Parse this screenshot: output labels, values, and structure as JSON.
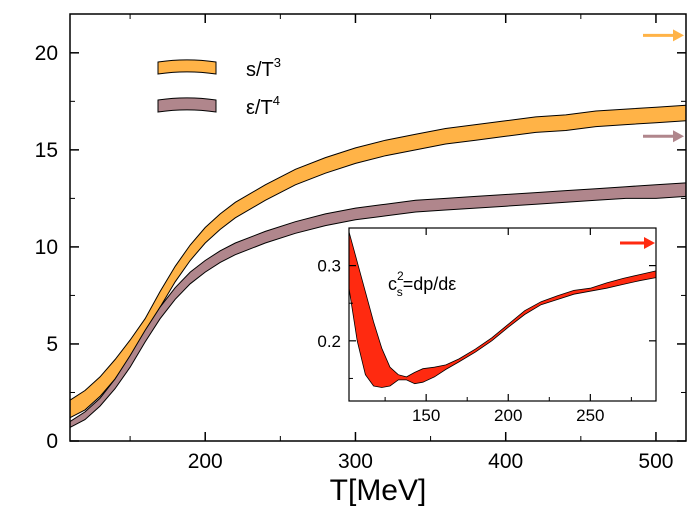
{
  "chart_data": [
    {
      "type": "area",
      "xlabel": "T[MeV]",
      "ylabel": "",
      "xlim": [
        110,
        520
      ],
      "ylim": [
        0,
        22
      ],
      "xticks": [
        200,
        300,
        400,
        500
      ],
      "yticks": [
        0,
        5,
        10,
        15,
        20
      ],
      "grid": false,
      "legend_position": "top-left",
      "series": [
        {
          "name": "s/T^3",
          "legend_main": "s/T",
          "legend_sup": "3",
          "color": "#ffb347",
          "x": [
            110,
            120,
            130,
            140,
            150,
            160,
            170,
            180,
            190,
            200,
            210,
            220,
            240,
            260,
            280,
            300,
            320,
            340,
            360,
            380,
            400,
            420,
            440,
            460,
            480,
            500,
            520
          ],
          "lower": [
            1.2,
            1.6,
            2.3,
            3.2,
            4.3,
            5.5,
            6.9,
            8.2,
            9.3,
            10.2,
            10.9,
            11.5,
            12.4,
            13.2,
            13.8,
            14.3,
            14.7,
            15.0,
            15.3,
            15.5,
            15.7,
            15.9,
            16.0,
            16.2,
            16.3,
            16.4,
            16.5
          ],
          "upper": [
            2.1,
            2.6,
            3.3,
            4.2,
            5.2,
            6.3,
            7.7,
            9.0,
            10.1,
            11.0,
            11.7,
            12.3,
            13.2,
            14.0,
            14.6,
            15.1,
            15.5,
            15.8,
            16.1,
            16.3,
            16.5,
            16.7,
            16.8,
            17.0,
            17.1,
            17.2,
            17.3
          ]
        },
        {
          "name": "ε/T^4",
          "legend_main": "ε/T",
          "legend_sup": "4",
          "color": "#b0868c",
          "x": [
            110,
            120,
            130,
            140,
            150,
            160,
            170,
            180,
            190,
            200,
            210,
            220,
            240,
            260,
            280,
            300,
            320,
            340,
            360,
            380,
            400,
            420,
            440,
            460,
            480,
            500,
            520
          ],
          "lower": [
            0.7,
            1.1,
            1.8,
            2.7,
            3.8,
            5.1,
            6.3,
            7.3,
            8.1,
            8.7,
            9.2,
            9.6,
            10.2,
            10.7,
            11.1,
            11.4,
            11.6,
            11.8,
            11.9,
            12.0,
            12.1,
            12.2,
            12.3,
            12.4,
            12.5,
            12.5,
            12.6
          ],
          "upper": [
            1.0,
            1.5,
            2.2,
            3.2,
            4.4,
            5.7,
            6.9,
            7.9,
            8.7,
            9.3,
            9.8,
            10.2,
            10.8,
            11.3,
            11.7,
            12.0,
            12.2,
            12.4,
            12.5,
            12.6,
            12.7,
            12.8,
            12.9,
            13.0,
            13.1,
            13.2,
            13.3
          ]
        }
      ],
      "limit_arrows": [
        {
          "series": "s/T^3",
          "y": 20.9,
          "color": "#ffb347"
        },
        {
          "series": "ε/T^4",
          "y": 15.7,
          "color": "#b0868c"
        }
      ]
    },
    {
      "type": "area",
      "annotation_main": "c",
      "annotation_sup": "2",
      "annotation_sub": "s",
      "annotation_rest": "=dp/dε",
      "xlim": [
        103,
        290
      ],
      "ylim": [
        0.12,
        0.35
      ],
      "xticks": [
        150,
        200,
        250
      ],
      "yticks": [
        0.2,
        0.3
      ],
      "grid": false,
      "series": [
        {
          "name": "",
          "color": "#ff2a10",
          "x": [
            103,
            108,
            113,
            118,
            123,
            128,
            133,
            138,
            143,
            148,
            155,
            162,
            170,
            180,
            190,
            200,
            210,
            220,
            230,
            240,
            250,
            260,
            270,
            280,
            290
          ],
          "lower": [
            0.27,
            0.2,
            0.155,
            0.14,
            0.138,
            0.14,
            0.148,
            0.148,
            0.143,
            0.145,
            0.152,
            0.162,
            0.172,
            0.185,
            0.2,
            0.218,
            0.235,
            0.248,
            0.255,
            0.262,
            0.266,
            0.27,
            0.275,
            0.28,
            0.284
          ],
          "upper": [
            0.345,
            0.305,
            0.265,
            0.225,
            0.19,
            0.165,
            0.155,
            0.152,
            0.158,
            0.163,
            0.165,
            0.168,
            0.176,
            0.189,
            0.204,
            0.222,
            0.24,
            0.252,
            0.26,
            0.267,
            0.27,
            0.277,
            0.283,
            0.288,
            0.293
          ]
        }
      ],
      "limit_arrows": [
        {
          "series": "c_s^2",
          "y": 0.33,
          "color": "#ff2a10"
        }
      ]
    }
  ]
}
